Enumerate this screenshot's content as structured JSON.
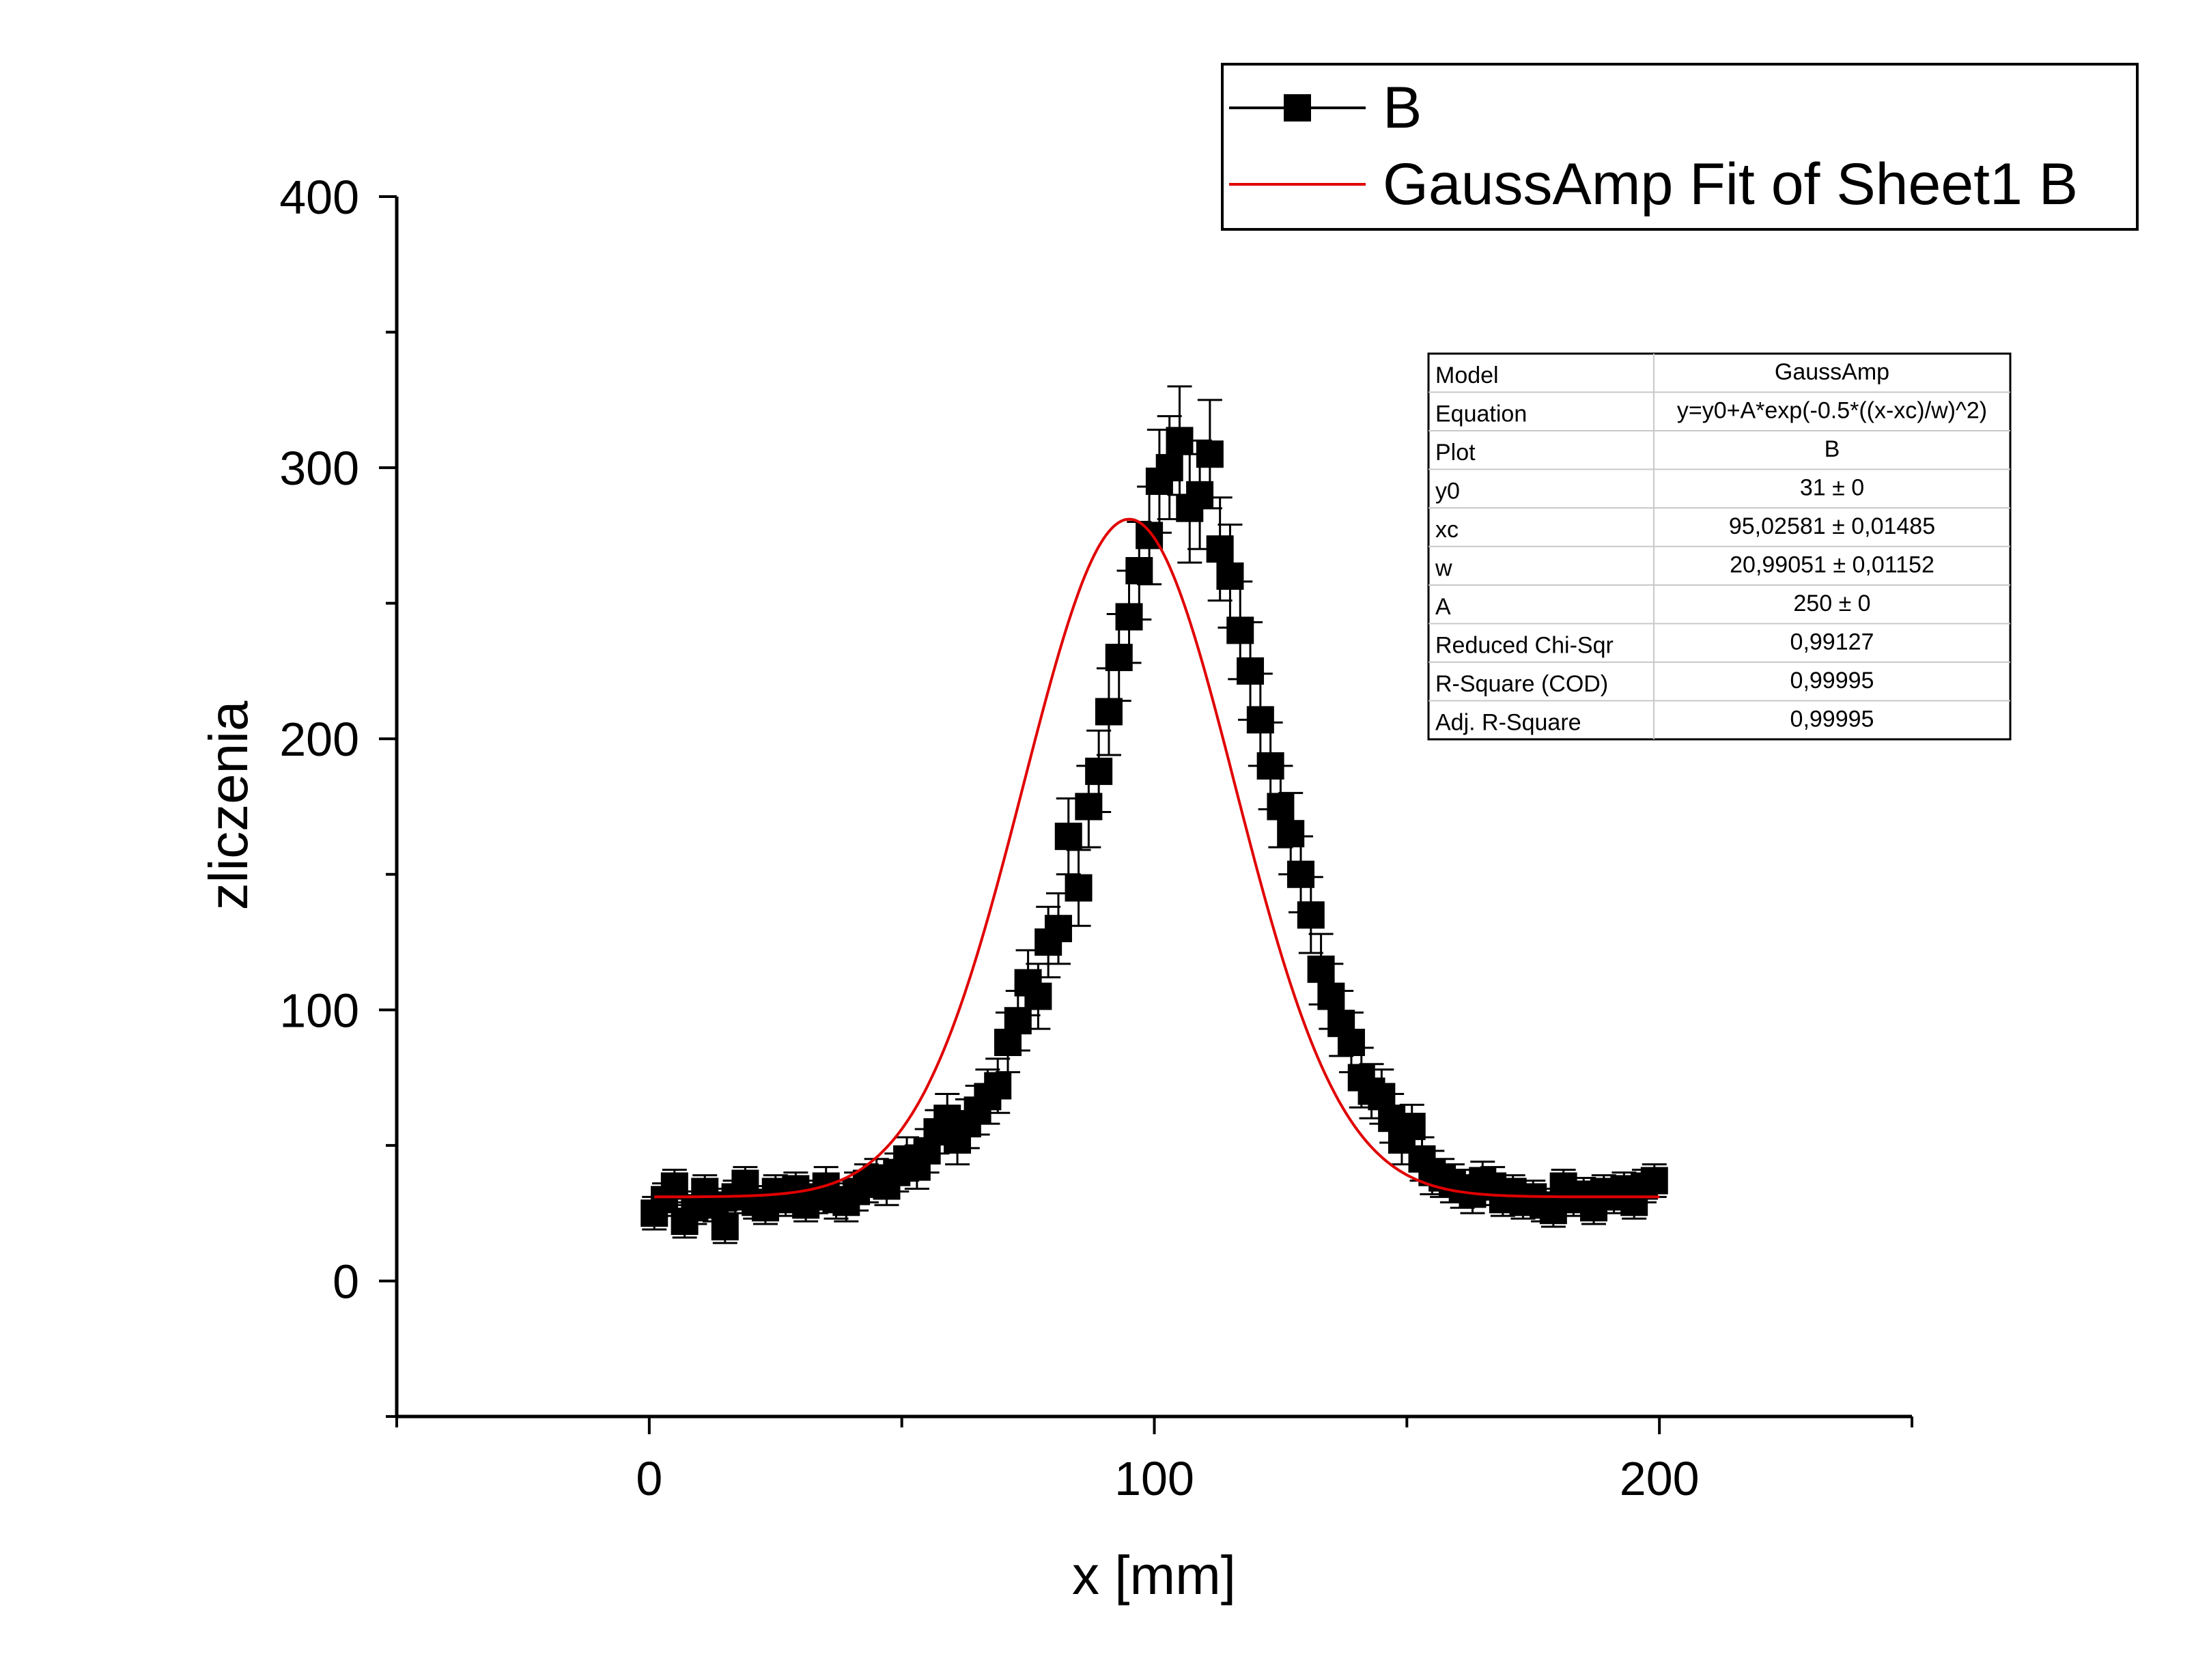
{
  "chart_data": {
    "type": "scatter",
    "xlabel": "x [mm]",
    "ylabel": "zliczenia",
    "xlim": [
      -50,
      250
    ],
    "ylim": [
      -50,
      400
    ],
    "x_ticks": [
      0,
      100,
      200
    ],
    "y_ticks": [
      0,
      100,
      200,
      300,
      400
    ],
    "grid": false,
    "legend_position": "top-right",
    "legend": {
      "data_label": "B",
      "fit_label": "GaussAmp Fit of Sheet1 B"
    },
    "colors": {
      "data": "#000000",
      "fit": "#e00000"
    },
    "series": [
      {
        "name": "B",
        "style": "square markers with error bars",
        "x": [
          1,
          3,
          5,
          7,
          9,
          11,
          13,
          15,
          17,
          19,
          21,
          23,
          25,
          27,
          29,
          31,
          33,
          35,
          37,
          39,
          41,
          43,
          45,
          47,
          49,
          51,
          53,
          55,
          57,
          59,
          61,
          63,
          65,
          67,
          69,
          71,
          73,
          75,
          77,
          79,
          81,
          83,
          85,
          87,
          89,
          91,
          93,
          95,
          97,
          99,
          101,
          103,
          105,
          107,
          109,
          111,
          113,
          115,
          117,
          119,
          121,
          123,
          125,
          127,
          129,
          131,
          133,
          135,
          137,
          139,
          141,
          143,
          145,
          147,
          149,
          151,
          153,
          155,
          157,
          159,
          161,
          163,
          165,
          167,
          169,
          171,
          173,
          175,
          177,
          179,
          181,
          183,
          185,
          187,
          189,
          191,
          193,
          195,
          197,
          199
        ],
        "y": [
          25,
          30,
          35,
          22,
          27,
          33,
          28,
          20,
          31,
          36,
          29,
          27,
          33,
          30,
          34,
          28,
          31,
          35,
          30,
          29,
          33,
          36,
          38,
          35,
          40,
          45,
          42,
          48,
          55,
          60,
          52,
          58,
          63,
          68,
          72,
          88,
          96,
          110,
          105,
          125,
          130,
          164,
          145,
          175,
          188,
          210,
          230,
          245,
          262,
          275,
          295,
          300,
          310,
          285,
          290,
          305,
          270,
          260,
          240,
          225,
          207,
          190,
          175,
          165,
          150,
          135,
          115,
          105,
          95,
          88,
          75,
          70,
          68,
          60,
          52,
          57,
          45,
          40,
          38,
          36,
          34,
          32,
          37,
          35,
          30,
          33,
          29,
          31,
          28,
          26,
          35,
          30,
          32,
          27,
          33,
          31,
          34,
          29,
          35,
          37
        ],
        "yerr": [
          6,
          6,
          6,
          6,
          6,
          6,
          6,
          6,
          6,
          6,
          6,
          6,
          6,
          6,
          6,
          6,
          6,
          7,
          7,
          7,
          7,
          7,
          7,
          7,
          7,
          8,
          8,
          8,
          8,
          9,
          9,
          9,
          9,
          10,
          10,
          11,
          11,
          12,
          12,
          13,
          13,
          14,
          14,
          15,
          15,
          16,
          16,
          17,
          18,
          18,
          19,
          19,
          20,
          20,
          20,
          20,
          19,
          19,
          18,
          18,
          17,
          16,
          15,
          15,
          14,
          14,
          13,
          12,
          12,
          11,
          11,
          10,
          10,
          9,
          9,
          8,
          8,
          8,
          7,
          7,
          7,
          7,
          7,
          7,
          6,
          6,
          6,
          6,
          6,
          6,
          6,
          6,
          6,
          6,
          6,
          6,
          6,
          6,
          6,
          6
        ]
      }
    ],
    "fit": {
      "name": "GaussAmp Fit of Sheet1 B",
      "model": "y=y0+A*exp(-0.5*((x-xc)/w)^2)",
      "y0": 31,
      "xc": 95.02581,
      "w": 20.99051,
      "A": 250,
      "x_range": [
        1,
        200
      ]
    },
    "table": [
      {
        "label": "Model",
        "value": "GaussAmp"
      },
      {
        "label": "Equation",
        "value": "y=y0+A*exp(-0.5*((x-xc)/w)^2)"
      },
      {
        "label": "Plot",
        "value": "B"
      },
      {
        "label": "y0",
        "value": "31 ± 0"
      },
      {
        "label": "xc",
        "value": "95,02581 ± 0,01485"
      },
      {
        "label": "w",
        "value": "20,99051 ± 0,01152"
      },
      {
        "label": "A",
        "value": "250 ± 0"
      },
      {
        "label": "Reduced Chi-Sqr",
        "value": "0,99127"
      },
      {
        "label": "R-Square (COD)",
        "value": "0,99995"
      },
      {
        "label": "Adj. R-Square",
        "value": "0,99995"
      }
    ]
  }
}
